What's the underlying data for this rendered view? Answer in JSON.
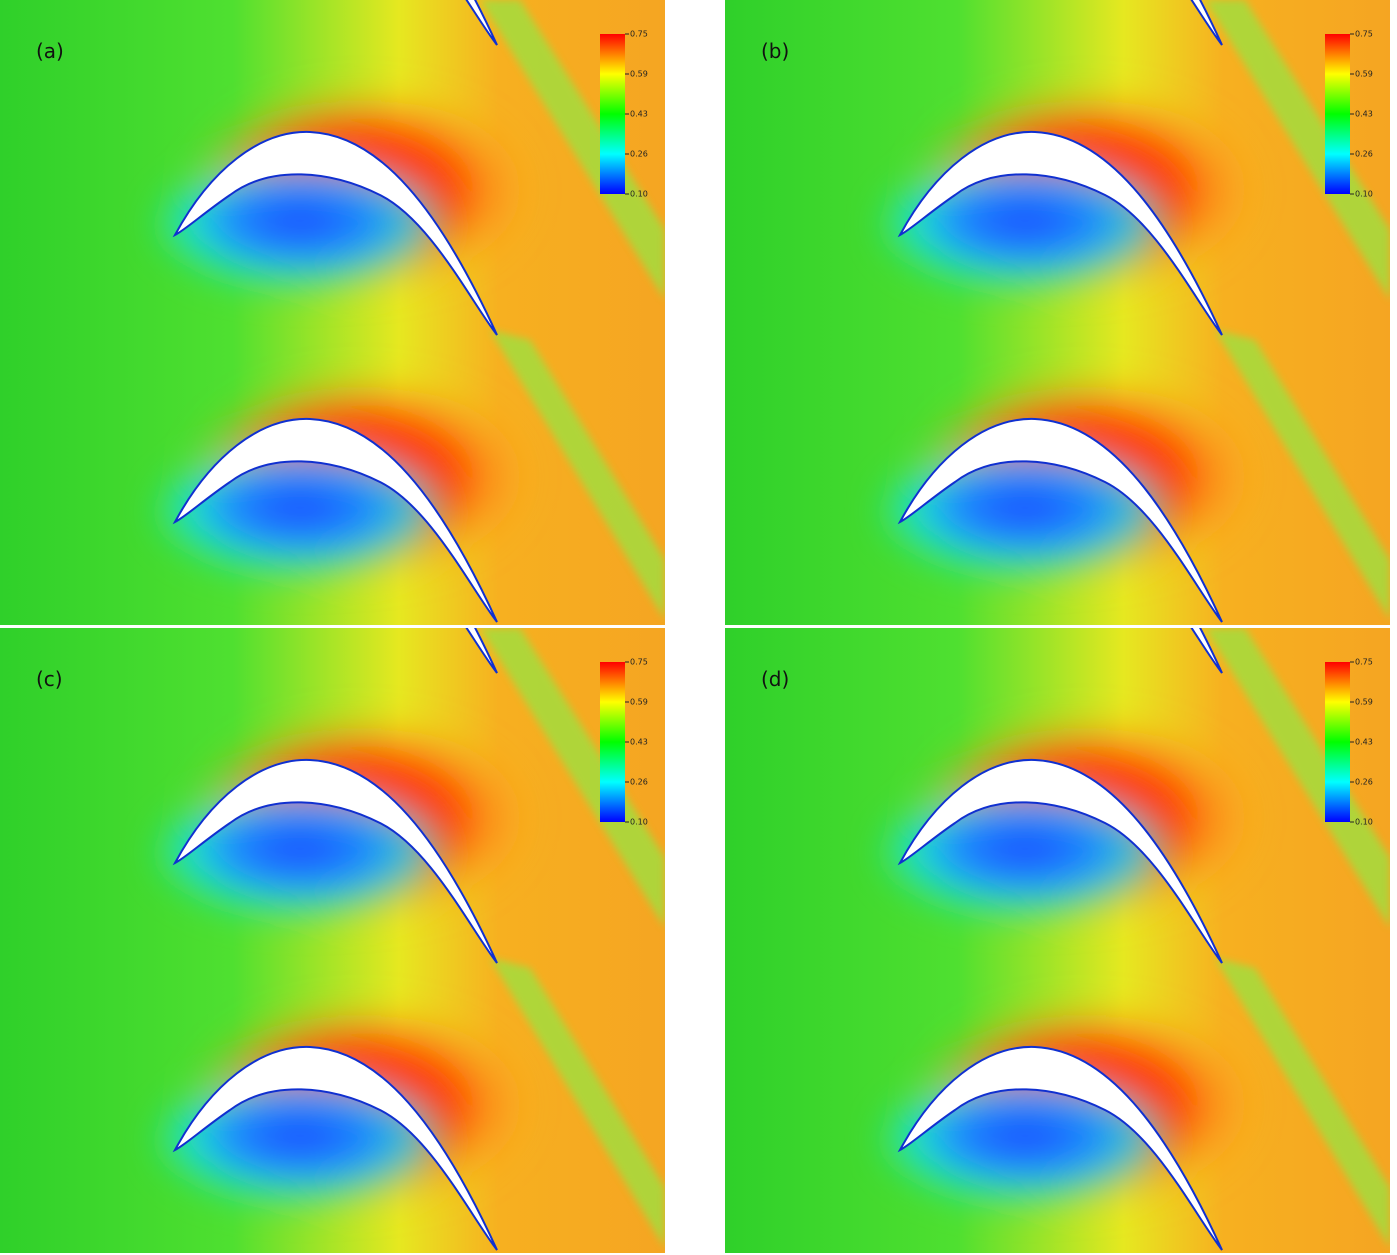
{
  "panels": [
    {
      "label": "(a)",
      "colorbar": [
        "0.75",
        "0.59",
        "0.43",
        "0.26",
        "0.10"
      ]
    },
    {
      "label": "(b)",
      "colorbar": [
        "0.75",
        "0.59",
        "0.43",
        "0.26",
        "0.10"
      ]
    },
    {
      "label": "(c)",
      "colorbar": [
        "0.75",
        "0.59",
        "0.43",
        "0.26",
        "0.10"
      ]
    },
    {
      "label": "(d)",
      "colorbar": [
        "0.75",
        "0.59",
        "0.43",
        "0.26",
        "0.10"
      ]
    }
  ]
}
